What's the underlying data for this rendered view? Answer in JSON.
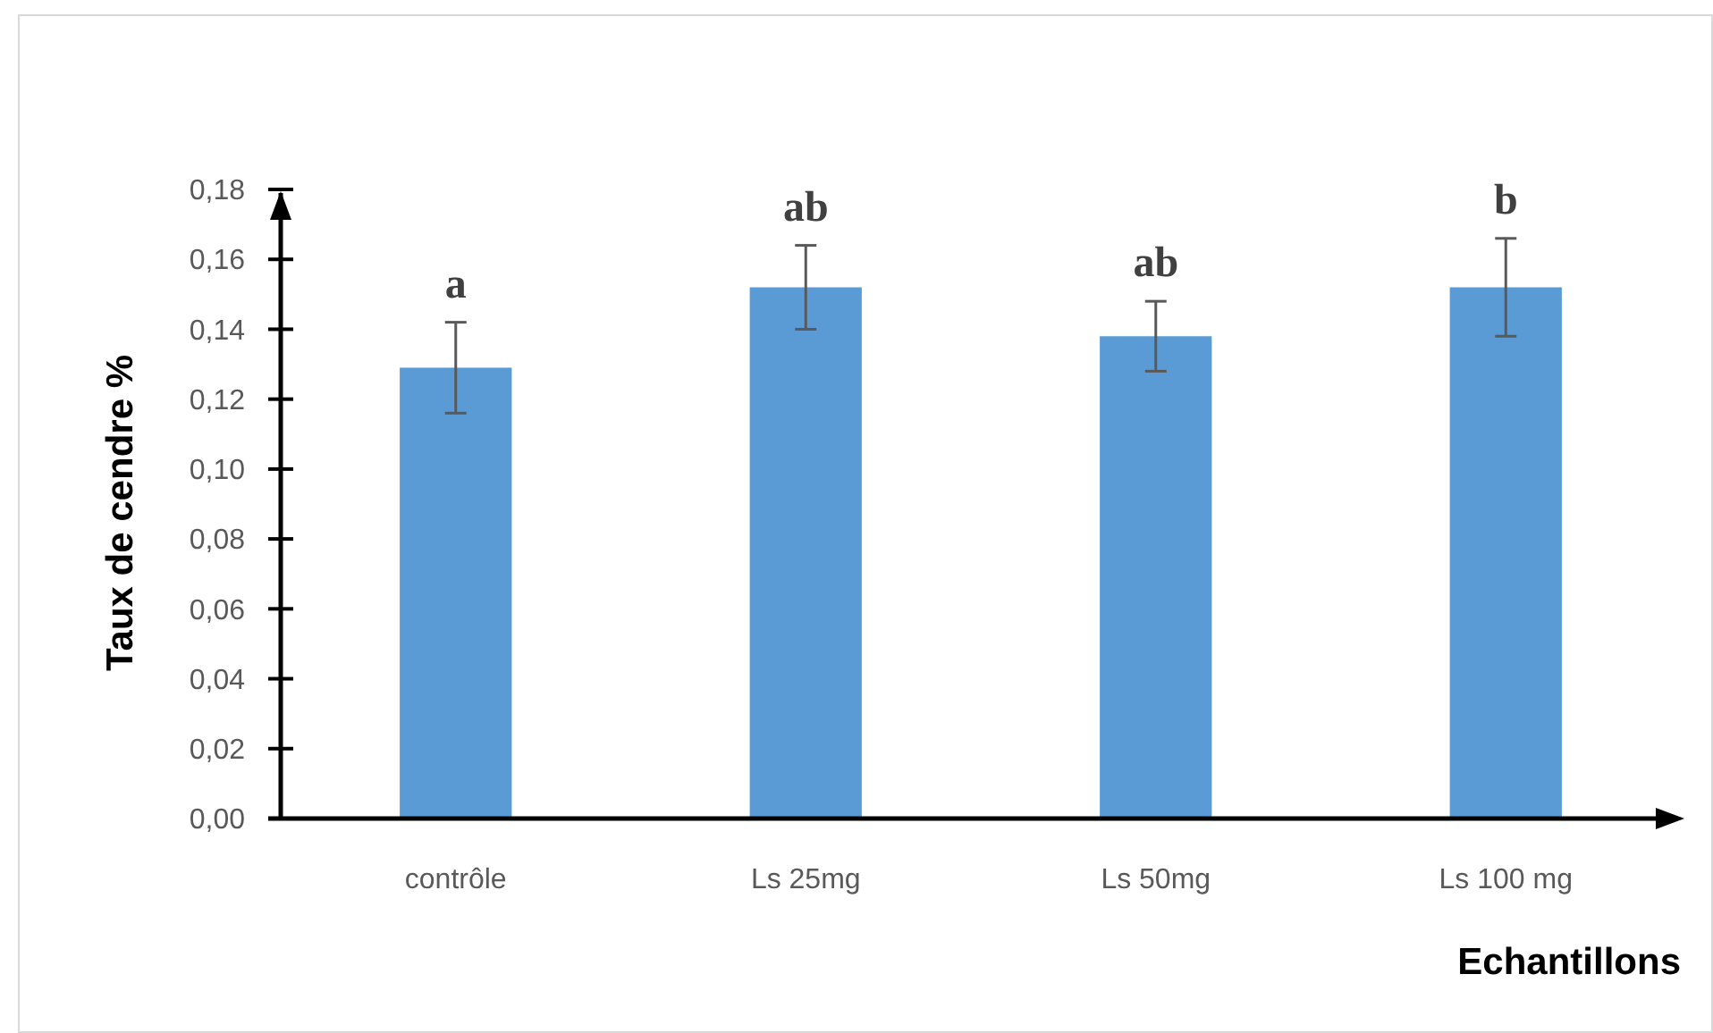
{
  "chart_data": {
    "type": "bar",
    "xlabel": "Echantillons",
    "ylabel": "Taux de cendre %",
    "categories": [
      "contrôle",
      "Ls 25mg",
      "Ls 50mg",
      "Ls 100 mg"
    ],
    "values": [
      0.129,
      0.152,
      0.138,
      0.152
    ],
    "errors": [
      0.013,
      0.012,
      0.01,
      0.014
    ],
    "color": "#5b9bd5",
    "ylim": [
      0,
      0.18
    ],
    "yticks": [
      {
        "value": 0,
        "label": "0,00"
      },
      {
        "value": 0.02,
        "label": "0,02"
      },
      {
        "value": 0.04,
        "label": "0,04"
      },
      {
        "value": 0.06,
        "label": "0,06"
      },
      {
        "value": 0.08,
        "label": "0,08"
      },
      {
        "value": 0.1,
        "label": "0,10"
      },
      {
        "value": 0.12,
        "label": "0,12"
      },
      {
        "value": 0.14,
        "label": "0,14"
      },
      {
        "value": 0.16,
        "label": "0,16"
      },
      {
        "value": 0.18,
        "label": "0,18"
      }
    ],
    "annotations": [
      "a",
      "ab",
      "ab",
      "b"
    ]
  }
}
